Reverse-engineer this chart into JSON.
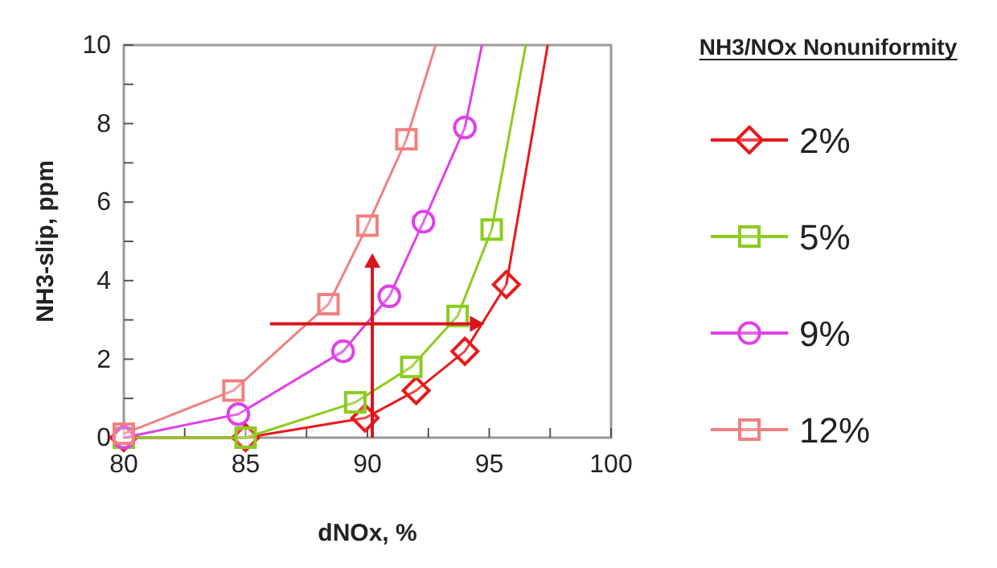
{
  "chart_data": {
    "type": "line",
    "xlabel": "dNOx, %",
    "ylabel": "NH3-slip, ppm",
    "legend_title": "NH3/NOx Nonuniformity",
    "xlim": [
      80,
      100
    ],
    "xticks": [
      80,
      {
        "value": 82.5,
        "label": null
      },
      85,
      {
        "value": 87.5,
        "label": null
      },
      90,
      {
        "value": 92.5,
        "label": null
      },
      95,
      {
        "value": 97.5,
        "label": null
      },
      100
    ],
    "ylim": [
      0,
      10
    ],
    "yticks": [
      0,
      {
        "value": 1,
        "label": null
      },
      2,
      {
        "value": 3,
        "label": null
      },
      4,
      {
        "value": 5,
        "label": null
      },
      6,
      {
        "value": 7,
        "label": null
      },
      8,
      {
        "value": 9,
        "label": null
      },
      10
    ],
    "grid": false,
    "legend": "right",
    "line_style": "solid",
    "series": [
      {
        "name": "2%",
        "color": "#e8191c",
        "marker": "diamond",
        "x": [
          80,
          85,
          89.9,
          92.0,
          94.0,
          95.7
        ],
        "values": [
          0,
          0,
          0.5,
          1.2,
          2.2,
          3.9
        ]
      },
      {
        "name": "5%",
        "color": "#8ccc1c",
        "marker": "square",
        "x": [
          80,
          85,
          89.5,
          91.8,
          93.7,
          95.1
        ],
        "values": [
          0,
          0,
          0.9,
          1.8,
          3.1,
          5.3
        ]
      },
      {
        "name": "9%",
        "color": "#e040e8",
        "marker": "circle",
        "x": [
          80,
          84.7,
          89.0,
          90.9,
          92.3,
          94.0
        ],
        "values": [
          0,
          0.6,
          2.2,
          3.6,
          5.5,
          7.9
        ]
      },
      {
        "name": "12%",
        "color": "#f08080",
        "marker": "square",
        "x": [
          80,
          84.5,
          88.4,
          90.0,
          91.6
        ],
        "values": [
          0.1,
          1.2,
          3.4,
          5.4,
          7.6
        ]
      },
      {
        "type": "line",
        "color": "#e8191c",
        "marker": "none",
        "x": [
          95.7,
          97.4
        ],
        "values": [
          3.9,
          10
        ]
      },
      {
        "type": "line",
        "color": "#8ccc1c",
        "marker": "none",
        "x": [
          95.1,
          96.5
        ],
        "values": [
          5.3,
          10
        ]
      },
      {
        "type": "line",
        "color": "#e040e8",
        "marker": "none",
        "x": [
          94.0,
          94.7
        ],
        "values": [
          7.9,
          10
        ]
      },
      {
        "type": "line",
        "color": "#f08080",
        "marker": "none",
        "x": [
          91.6,
          92.8
        ],
        "values": [
          7.6,
          10
        ]
      }
    ]
  }
}
